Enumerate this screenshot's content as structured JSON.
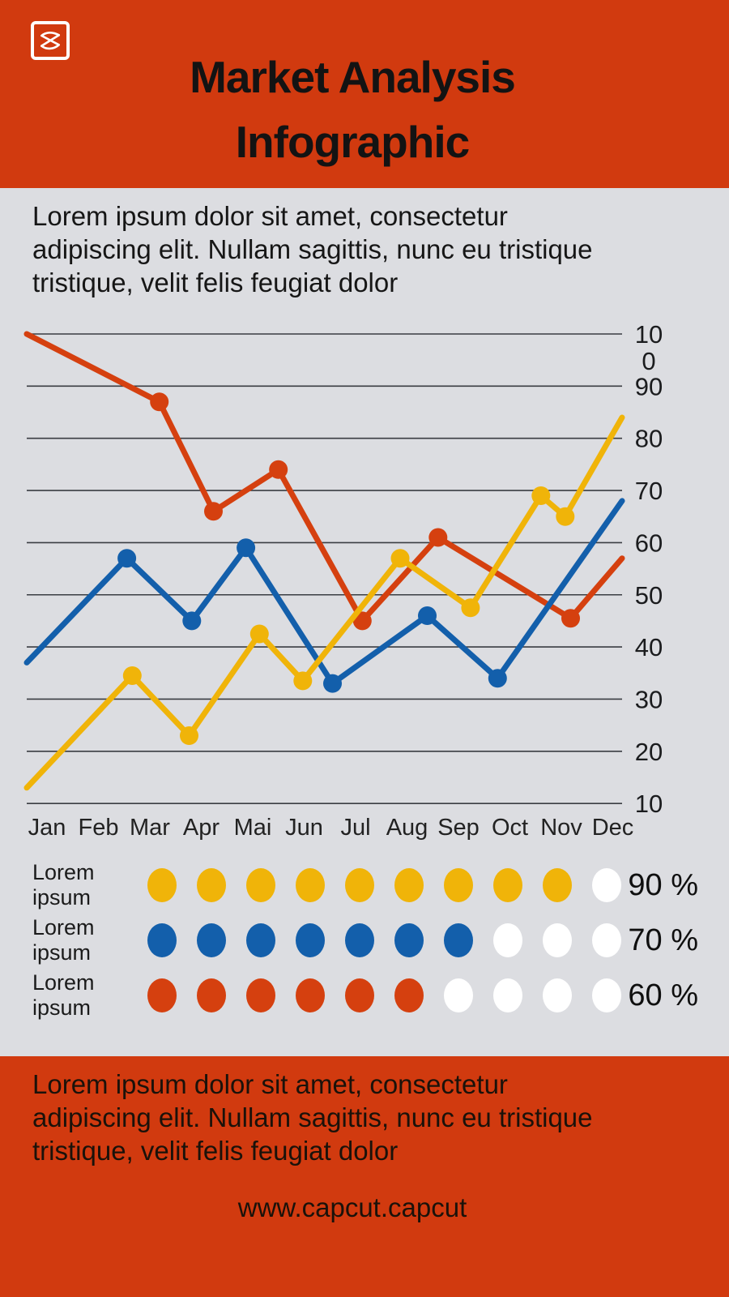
{
  "header": {
    "title_line1": "Market Analysis",
    "title_line2": "Infographic",
    "logo_icon": "capcut-logo-icon"
  },
  "intro": {
    "lines": [
      "Lorem ipsum dolor sit amet, consectetur",
      "adipiscing elit. Nullam sagittis, nunc eu tristique",
      "tristique, velit felis feugiat dolor"
    ]
  },
  "chart_data": {
    "type": "line",
    "categories": [
      "Jan",
      "Feb",
      "Mar",
      "Apr",
      "Mai",
      "Jun",
      "Jul",
      "Aug",
      "Sep",
      "Oct",
      "Nov",
      "Dec"
    ],
    "y_ticks": [
      100,
      90,
      80,
      70,
      60,
      50,
      40,
      30,
      20,
      10
    ],
    "ylim": [
      10,
      100
    ],
    "grid": true,
    "legend_position": "below",
    "x_scale_note": "x in month units, 0=Jan .. 11=Dec; vertices are unevenly spaced as drawn",
    "series": [
      {
        "name": "series-red",
        "color": "#d5400f",
        "points": [
          [
            0,
            100
          ],
          [
            2.45,
            87
          ],
          [
            3.45,
            66
          ],
          [
            4.65,
            74
          ],
          [
            6.2,
            45
          ],
          [
            7.6,
            61
          ],
          [
            10.05,
            45.5
          ],
          [
            11,
            57
          ]
        ]
      },
      {
        "name": "series-blue",
        "color": "#135fab",
        "points": [
          [
            0,
            37
          ],
          [
            1.85,
            57
          ],
          [
            3.05,
            45
          ],
          [
            4.05,
            59
          ],
          [
            5.65,
            33
          ],
          [
            7.4,
            46
          ],
          [
            8.7,
            34
          ],
          [
            11,
            68
          ]
        ]
      },
      {
        "name": "series-yellow",
        "color": "#f0b409",
        "points": [
          [
            0,
            13
          ],
          [
            1.95,
            34.5
          ],
          [
            3.0,
            23
          ],
          [
            4.3,
            42.5
          ],
          [
            5.1,
            33.5
          ],
          [
            6.9,
            57
          ],
          [
            8.2,
            47.5
          ],
          [
            9.5,
            69
          ],
          [
            9.95,
            65
          ],
          [
            11,
            84
          ]
        ]
      }
    ]
  },
  "legend": [
    {
      "label": "Lorem ipsum",
      "color": "#f0b409",
      "filled": 9,
      "total": 10,
      "percent": "90 %"
    },
    {
      "label": "Lorem ipsum",
      "color": "#135fab",
      "filled": 7,
      "total": 10,
      "percent": "70 %"
    },
    {
      "label": "Lorem ipsum",
      "color": "#d5400f",
      "filled": 6,
      "total": 10,
      "percent": "60 %"
    }
  ],
  "footer": {
    "lines": [
      "Lorem ipsum dolor sit amet, consectetur",
      "adipiscing elit. Nullam sagittis, nunc eu tristique",
      "tristique, velit felis feugiat dolor"
    ],
    "website": "www.capcut.capcut"
  },
  "colors": {
    "orange": "#d13a0f",
    "gray": "#dcdde1",
    "gridline": "#3a3d42",
    "tick_text": "#1b1c1e",
    "white_dot": "#ffffff"
  }
}
